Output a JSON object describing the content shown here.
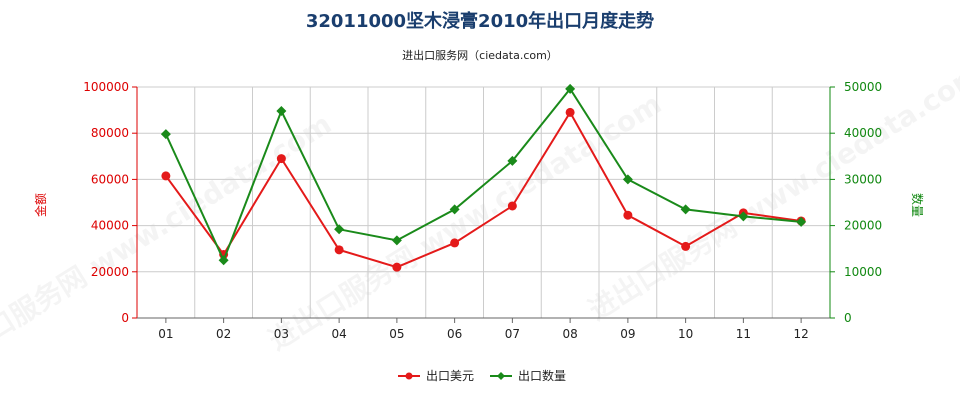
{
  "chart_data": {
    "type": "line",
    "title": "32011000坚木浸膏2010年出口月度走势",
    "subtitle": "进出口服务网（ciedata.com）",
    "watermark": "进出口服务网 www.ciedata.com",
    "categories": [
      "01",
      "02",
      "03",
      "04",
      "05",
      "06",
      "07",
      "08",
      "09",
      "10",
      "11",
      "12"
    ],
    "y_left": {
      "label": "金额",
      "min": 0,
      "max": 100000,
      "ticks": [
        "0",
        "20000",
        "40000",
        "60000",
        "80000",
        "100000"
      ],
      "color": "#dd0000"
    },
    "y_right": {
      "label": "数量",
      "min": 0,
      "max": 50000,
      "ticks": [
        "0",
        "10000",
        "20000",
        "30000",
        "40000",
        "50000"
      ],
      "color": "#118811"
    },
    "series": [
      {
        "name": "出口美元",
        "axis": "left",
        "color": "#e41a1a",
        "marker": "circle",
        "values": [
          61500,
          27500,
          69000,
          29500,
          22000,
          32500,
          48500,
          89000,
          44500,
          31000,
          45500,
          42000
        ]
      },
      {
        "name": "出口数量",
        "axis": "right",
        "color": "#1a8a1a",
        "marker": "diamond",
        "values": [
          39800,
          12500,
          44800,
          19200,
          16800,
          23500,
          34000,
          49600,
          30000,
          23500,
          22000,
          20800
        ]
      }
    ],
    "grid": true,
    "legend_position": "bottom-center"
  }
}
